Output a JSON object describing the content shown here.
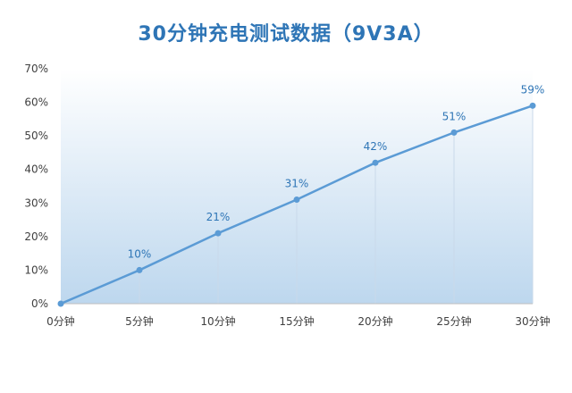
{
  "chart_data": {
    "type": "line",
    "title": "30分钟充电测试数据（9V3A）",
    "categories": [
      "0分钟",
      "5分钟",
      "10分钟",
      "15分钟",
      "20分钟",
      "25分钟",
      "30分钟"
    ],
    "values": [
      0,
      10,
      21,
      31,
      42,
      51,
      59
    ],
    "data_labels": [
      "",
      "10%",
      "21%",
      "31%",
      "42%",
      "51%",
      "59%"
    ],
    "y_ticks": [
      "0%",
      "10%",
      "20%",
      "30%",
      "40%",
      "50%",
      "60%",
      "70%"
    ],
    "ylim": [
      0,
      70
    ],
    "xlabel": "",
    "ylabel": "",
    "grid": false,
    "colors": {
      "line": "#5b9bd5",
      "title": "#2e75b6",
      "label": "#2e75b6",
      "plot_bg_top": "#ffffff",
      "plot_bg_bottom": "#bdd7ee"
    }
  }
}
